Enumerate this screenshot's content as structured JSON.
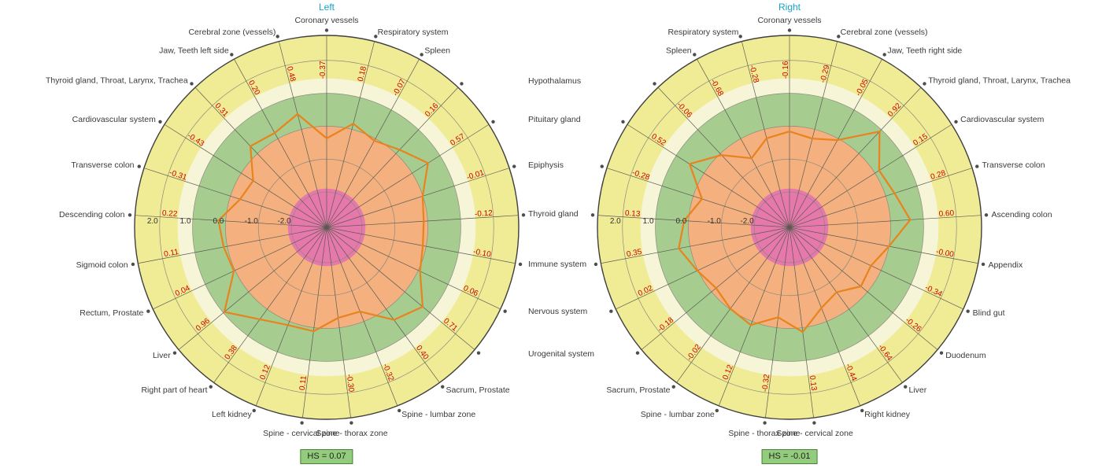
{
  "titles": {
    "left": "Left",
    "right": "Right"
  },
  "hs": {
    "left": "HS = 0.07",
    "right": "HS = -0.01"
  },
  "colors": {
    "ring_yellow": "#F0EC96",
    "ring_cream": "#F7F5D8",
    "ring_green": "#A6CC8F",
    "ring_orange": "#F4B07E",
    "ring_pink": "#E678AC",
    "grid_line": "#8B8B7C",
    "outer_circle": "#3F3F3F",
    "spoke_line": "#5A5A52",
    "dot": "#4D4D4D",
    "polygon": "#E8831D",
    "value_text": "#CC0000",
    "label_text": "#3A3A3A",
    "title_text": "#17A0C4",
    "hs_bg": "#92CC7C",
    "hs_border": "#47813A"
  },
  "chart_data": [
    {
      "type": "radar",
      "title": "Left",
      "hs_label": "HS = 0.07",
      "scale": {
        "min": -2,
        "max": 2,
        "tick_values": [
          2,
          1,
          0,
          -1,
          -2
        ],
        "tick_labels": [
          "2.0",
          "1.0",
          "0.0",
          "-1.0",
          "-2.0"
        ]
      },
      "axes": [
        "Coronary vessels",
        "Respiratory system",
        "Spleen",
        "Hypothalamus",
        "Pituitary gland",
        "Epiphysis",
        "Thyroid gland",
        "Immune system",
        "Nervous system",
        "Urogenital system",
        "Sacrum, Prostate",
        "Spine - lumbar zone",
        "Spine - thorax zone",
        "Spine - cervical zone",
        "Left kidney",
        "Right part of heart",
        "Liver",
        "Rectum, Prostate",
        "Sigmoid colon",
        "Descending colon",
        "Transverse colon",
        "Cardiovascular system",
        "Thyroid gland, Throat, Larynx, Trachea",
        "Jaw, Teeth left side",
        "Cerebral zone (vessels)"
      ],
      "values": [
        -0.37,
        0.18,
        -0.07,
        0.16,
        0.57,
        -0.01,
        -0.12,
        -0.1,
        0.06,
        0.71,
        0.4,
        -0.32,
        -0.3,
        0.11,
        0.12,
        0.38,
        0.96,
        0.04,
        0.11,
        0.22,
        -0.31,
        -0.43,
        0.31,
        0.2,
        0.48
      ],
      "value_labels": [
        "-0.37",
        "0.18",
        "-0.07",
        "0.16",
        "0.57",
        "-0.01",
        "-0.12",
        "-0.10",
        "0.06",
        "0.71",
        "0.40",
        "-0.32",
        "-0.30",
        "0.11",
        "0.12",
        "0.38",
        "0.96",
        "0.04",
        "0.11",
        "0.22",
        "-0.31",
        "-0.43",
        "0.31",
        "0.20",
        "0.48"
      ],
      "shared_axis_indices": [
        3,
        4,
        5,
        6,
        7,
        8,
        9
      ]
    },
    {
      "type": "radar",
      "title": "Right",
      "hs_label": "HS = -0.01",
      "scale": {
        "min": -2,
        "max": 2,
        "tick_values": [
          2,
          1,
          0,
          -1,
          -2
        ],
        "tick_labels": [
          "2.0",
          "1.0",
          "0.0",
          "-1.0",
          "-2.0"
        ]
      },
      "axes": [
        "Coronary vessels",
        "Cerebral zone (vessels)",
        "Jaw, Teeth right side",
        "Thyroid gland, Throat, Larynx, Trachea",
        "Cardiovascular system",
        "Transverse colon",
        "Ascending colon",
        "Appendix",
        "Blind gut",
        "Duodenum",
        "Liver",
        "Right kidney",
        "Spine - cervical zone",
        "Spine - thorax zone",
        "Spine - lumbar zone",
        "Sacrum, Prostate",
        "Urogenital system",
        "Nervous system",
        "Immune system",
        "Thyroid gland",
        "Epiphysis",
        "Pituitary gland",
        "Hypothalamus",
        "Spleen",
        "Respiratory system"
      ],
      "values": [
        -0.16,
        -0.29,
        -0.05,
        0.92,
        0.15,
        0.28,
        0.6,
        -0.0,
        -0.34,
        -0.26,
        -0.64,
        -0.44,
        0.13,
        -0.32,
        0.12,
        -0.02,
        -0.18,
        0.02,
        0.35,
        0.13,
        -0.28,
        0.52,
        -0.06,
        -0.68,
        -0.28
      ],
      "value_labels": [
        "-0.16",
        "-0.29",
        "-0.05",
        "0.92",
        "0.15",
        "0.28",
        "0.60",
        "-0.00",
        "-0.34",
        "-0.26",
        "-0.64",
        "-0.44",
        "0.13",
        "-0.32",
        "0.12",
        "-0.02",
        "-0.18",
        "0.02",
        "0.35",
        "0.13",
        "-0.28",
        "0.52",
        "-0.06",
        "-0.68",
        "-0.28"
      ],
      "shared_axis_indices": [
        16,
        17,
        18,
        19,
        20,
        21,
        22
      ]
    }
  ],
  "center_labels": [
    "Hypothalamus",
    "Pituitary gland",
    "Epiphysis",
    "Thyroid gland",
    "Immune system",
    "Nervous system",
    "Urogenital system"
  ]
}
